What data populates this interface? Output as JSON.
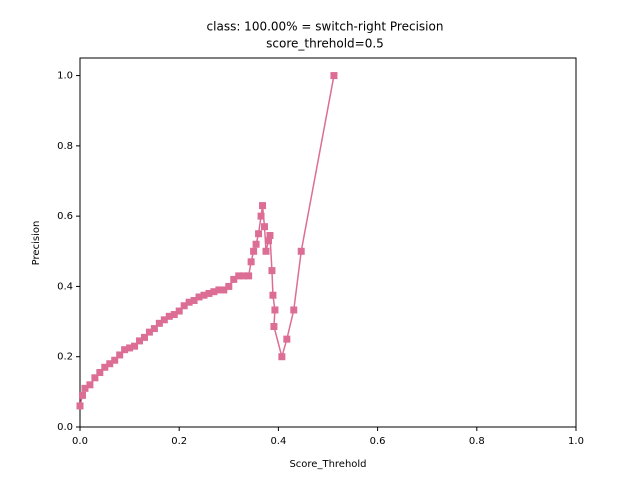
{
  "chart_data": {
    "type": "line",
    "title": "class: 100.00% = switch-right Precision",
    "subtitle": "score_threhold=0.5",
    "x_label": "Score_Threhold",
    "y_label": "Precision",
    "xlim": [
      0,
      1
    ],
    "ylim": [
      0,
      1.05
    ],
    "xticks": [
      {
        "value": 0,
        "label": "0.0"
      },
      0.2,
      0.4,
      0.6,
      0.8,
      {
        "value": 1,
        "label": "1.0"
      }
    ],
    "yticks": [
      {
        "value": 0,
        "label": "0.0"
      },
      0.2,
      0.4,
      0.6,
      0.8,
      {
        "value": 1,
        "label": "1.0"
      }
    ],
    "series": [
      {
        "name": "switch-right",
        "color": "#dc6e96",
        "x": [
          0.0,
          0.005,
          0.01,
          0.02,
          0.03,
          0.04,
          0.05,
          0.06,
          0.07,
          0.08,
          0.09,
          0.1,
          0.11,
          0.12,
          0.13,
          0.14,
          0.15,
          0.16,
          0.17,
          0.18,
          0.19,
          0.2,
          0.21,
          0.22,
          0.23,
          0.24,
          0.25,
          0.26,
          0.27,
          0.28,
          0.29,
          0.3,
          0.31,
          0.32,
          0.33,
          0.34,
          0.345,
          0.35,
          0.355,
          0.36,
          0.365,
          0.368,
          0.372,
          0.375,
          0.38,
          0.383,
          0.387,
          0.389,
          0.393,
          0.391,
          0.407,
          0.417,
          0.431,
          0.446,
          0.512
        ],
        "values": [
          0.06,
          0.09,
          0.11,
          0.12,
          0.14,
          0.155,
          0.17,
          0.18,
          0.19,
          0.205,
          0.22,
          0.225,
          0.23,
          0.245,
          0.255,
          0.27,
          0.28,
          0.295,
          0.305,
          0.315,
          0.32,
          0.33,
          0.345,
          0.355,
          0.36,
          0.37,
          0.375,
          0.38,
          0.385,
          0.39,
          0.39,
          0.4,
          0.42,
          0.43,
          0.43,
          0.43,
          0.47,
          0.5,
          0.52,
          0.55,
          0.6,
          0.63,
          0.57,
          0.5,
          0.53,
          0.545,
          0.445,
          0.375,
          0.333,
          0.286,
          0.2,
          0.25,
          0.333,
          0.5,
          1.0
        ]
      }
    ]
  }
}
